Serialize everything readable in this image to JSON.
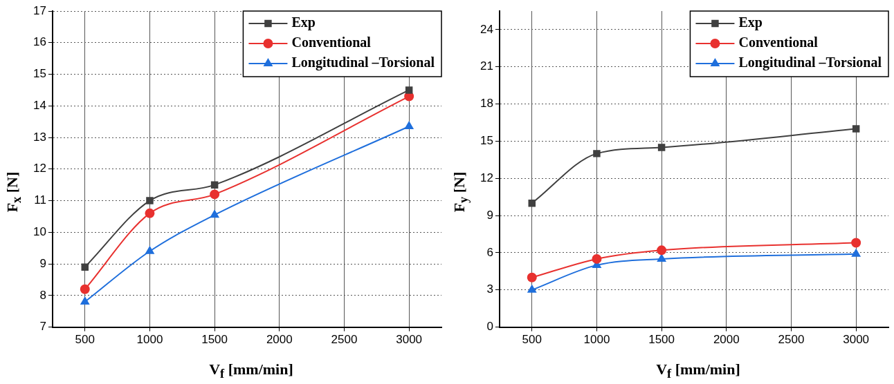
{
  "chart_data": [
    {
      "type": "line",
      "xlabel": "V$_{f}$ [mm/min]",
      "ylabel": "F$_{x}$ [N]",
      "x": [
        500,
        1000,
        1500,
        3000
      ],
      "xlim": [
        250,
        3250
      ],
      "xticks": [
        500,
        1000,
        1500,
        2000,
        2500,
        3000
      ],
      "ylim": [
        7,
        17
      ],
      "yticks": [
        7,
        8,
        9,
        10,
        11,
        12,
        13,
        14,
        15,
        16,
        17
      ],
      "grid": true,
      "legend": "top right",
      "line_style": "solid",
      "series": [
        {
          "name": "Exp",
          "color": "#404040",
          "marker": "square",
          "values": [
            8.9,
            11.0,
            11.5,
            14.5
          ]
        },
        {
          "name": "Conventional",
          "color": "#e8312f",
          "marker": "circle",
          "values": [
            8.2,
            10.6,
            11.2,
            14.3
          ]
        },
        {
          "name": "Longitudinal –Torsional",
          "color": "#1f6fdc",
          "marker": "triangle",
          "values": [
            7.8,
            9.4,
            10.55,
            13.35
          ]
        }
      ]
    },
    {
      "type": "line",
      "xlabel": "V$_{f}$ [mm/min]",
      "ylabel": "F$_{y}$ [N]",
      "x": [
        500,
        1000,
        1500,
        3000
      ],
      "xlim": [
        250,
        3250
      ],
      "xticks": [
        500,
        1000,
        1500,
        2000,
        2500,
        3000
      ],
      "ylim": [
        0,
        25.5
      ],
      "yticks": [
        0,
        3,
        6,
        9,
        12,
        15,
        18,
        21,
        24
      ],
      "grid": true,
      "legend": "top right",
      "line_style": "solid",
      "series": [
        {
          "name": "Exp",
          "color": "#404040",
          "marker": "square",
          "values": [
            10,
            14,
            14.5,
            16
          ]
        },
        {
          "name": "Conventional",
          "color": "#e8312f",
          "marker": "circle",
          "values": [
            4,
            5.5,
            6.2,
            6.8
          ]
        },
        {
          "name": "Longitudinal –Torsional",
          "color": "#1f6fdc",
          "marker": "triangle",
          "values": [
            3,
            5,
            5.5,
            5.9
          ]
        }
      ]
    }
  ]
}
